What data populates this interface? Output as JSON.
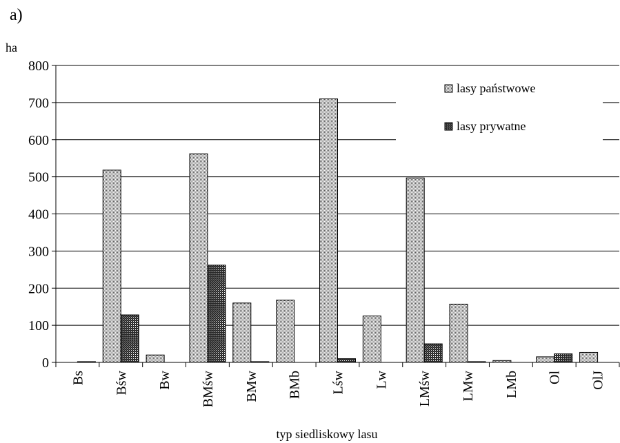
{
  "chart_data": {
    "type": "bar",
    "panel_label": "a)",
    "title": "",
    "xlabel": "typ siedliskowy lasu",
    "ylabel": "ha",
    "ylim": [
      0,
      800
    ],
    "yticks": [
      0,
      100,
      200,
      300,
      400,
      500,
      600,
      700,
      800
    ],
    "grid": true,
    "legend_position": "top-right",
    "categories": [
      "Bs",
      "Bśw",
      "Bw",
      "BMśw",
      "BMw",
      "BMb",
      "Lśw",
      "Lw",
      "LMśw",
      "LMw",
      "LMb",
      "Ol",
      "OlJ"
    ],
    "series": [
      {
        "name": "lasy państwowe",
        "pattern": "light-crosshatch",
        "values": [
          0,
          518,
          20,
          562,
          160,
          168,
          710,
          125,
          497,
          157,
          5,
          15,
          27
        ]
      },
      {
        "name": "lasy prywatne",
        "pattern": "dark-crosshatch",
        "values": [
          2,
          128,
          0,
          262,
          2,
          0,
          10,
          0,
          50,
          2,
          0,
          23,
          0
        ]
      }
    ]
  }
}
